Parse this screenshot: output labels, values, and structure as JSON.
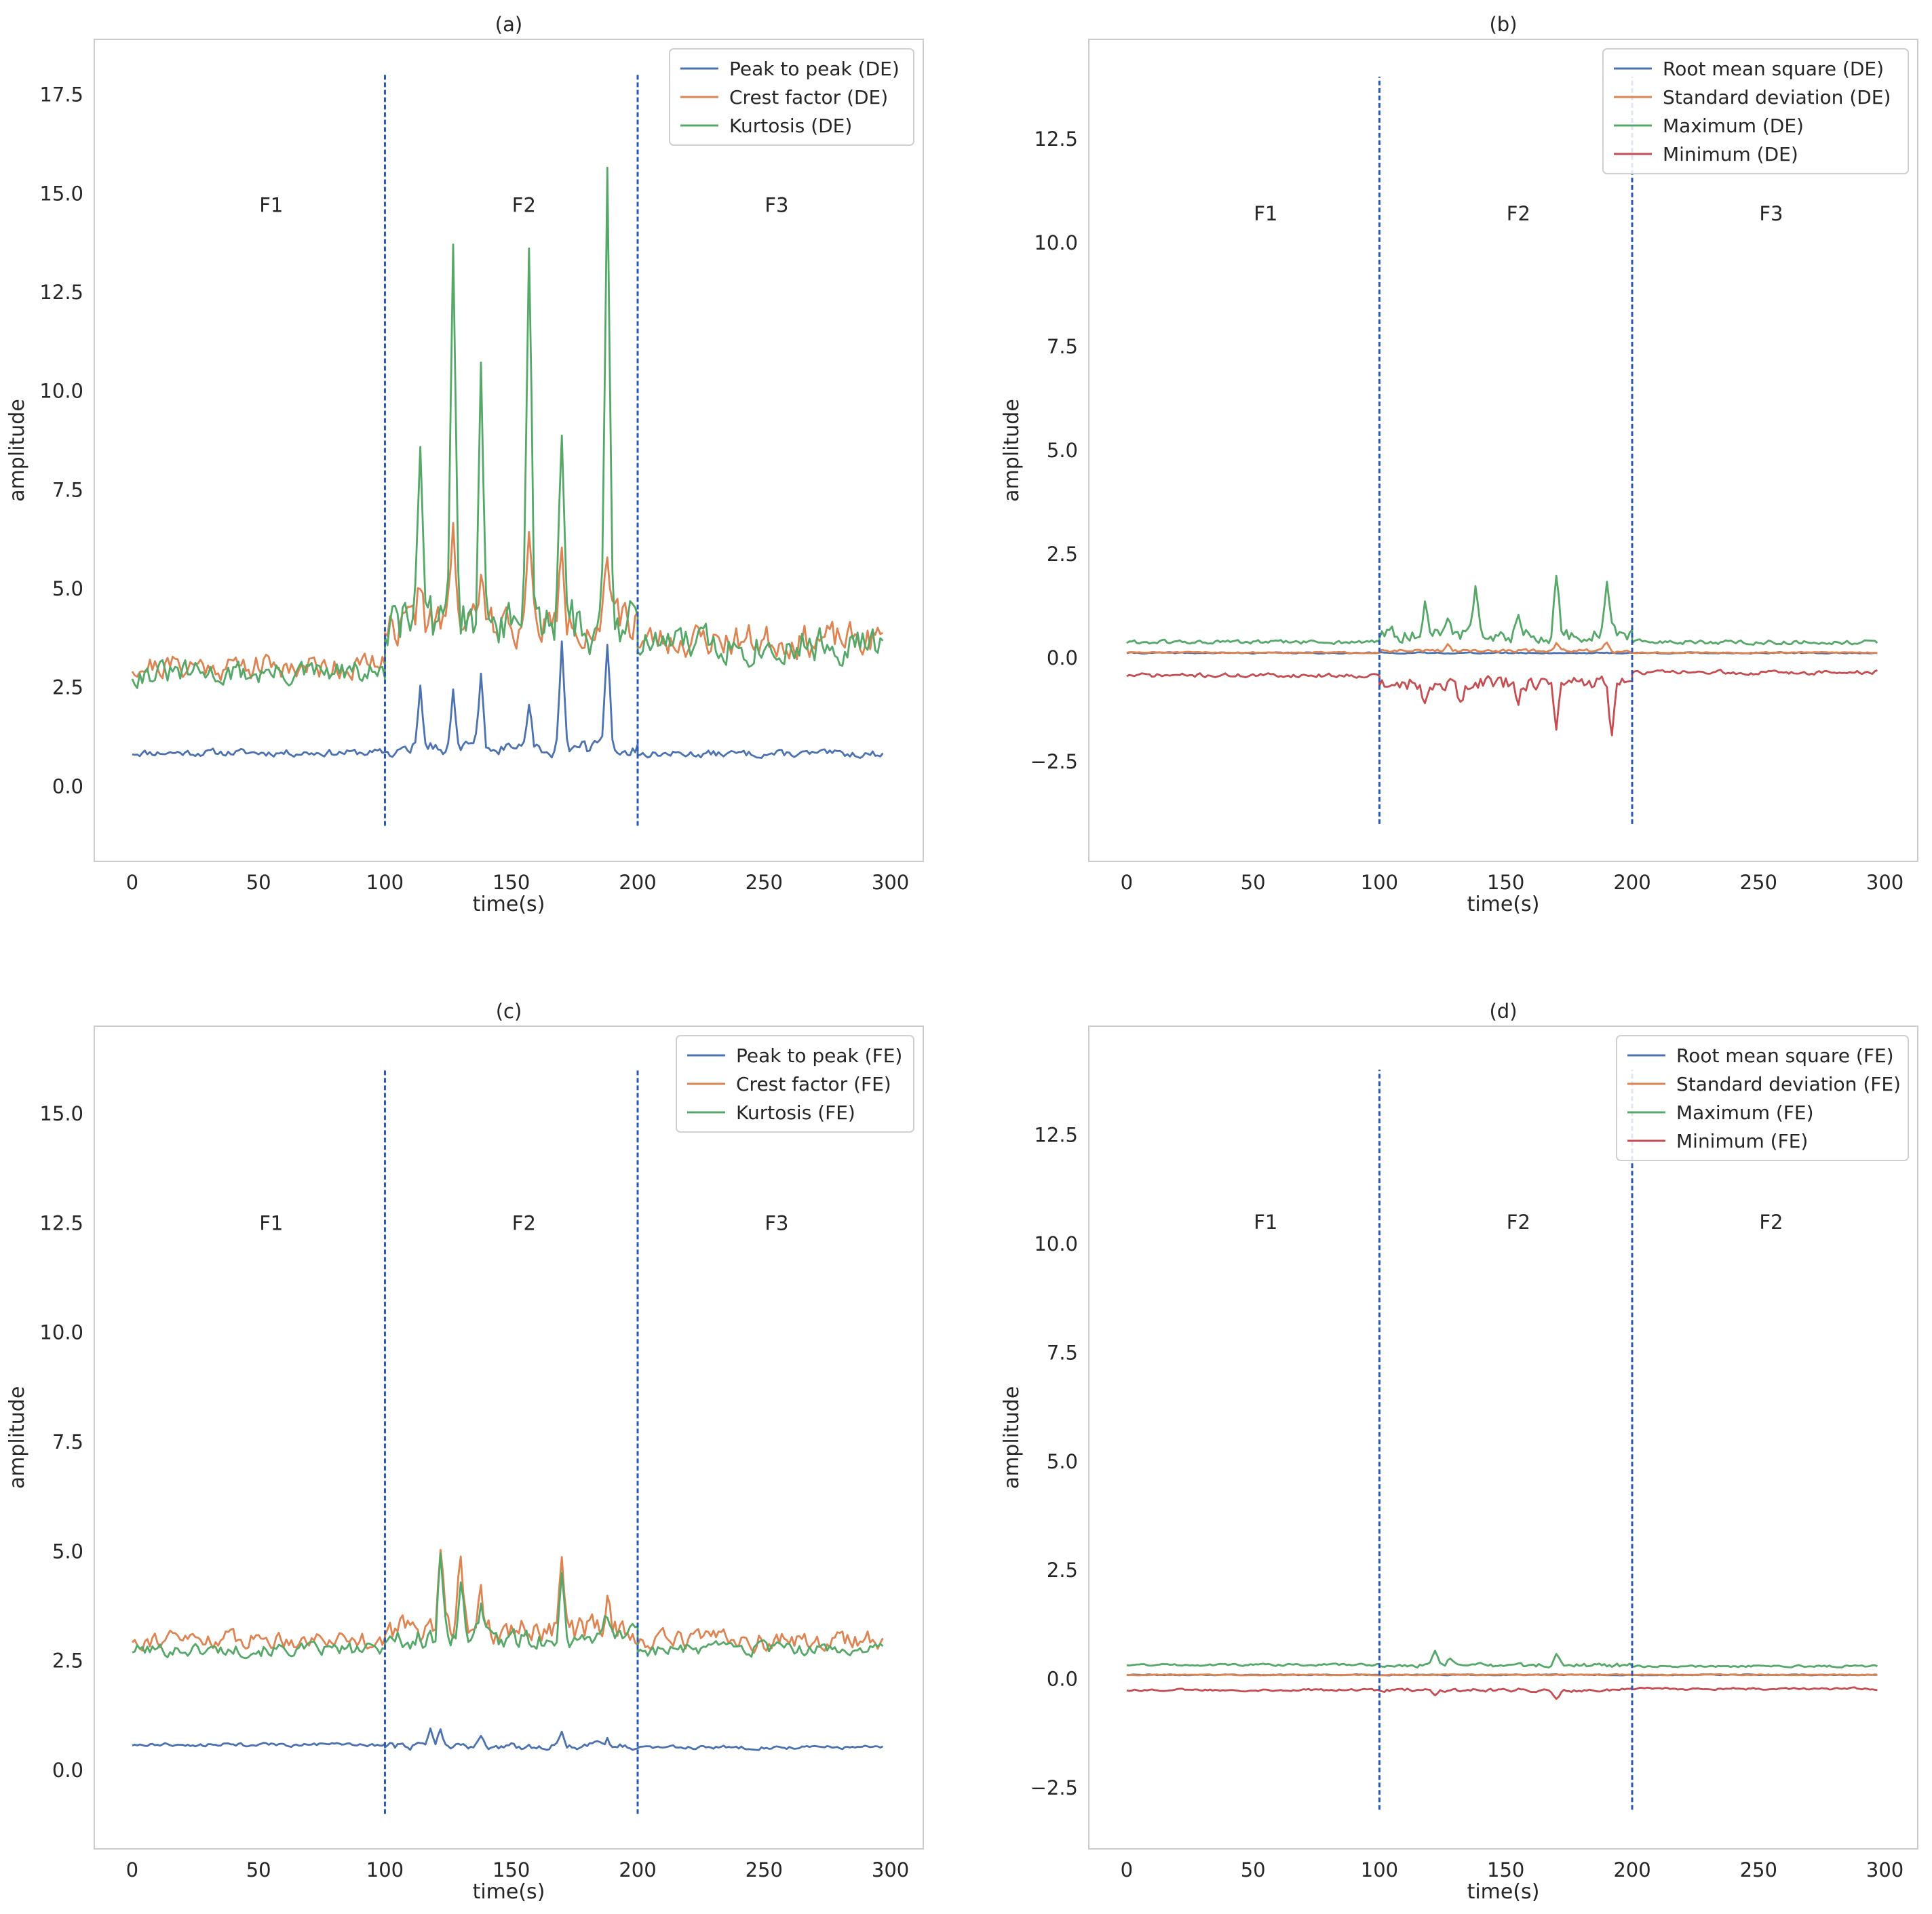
{
  "figure": {
    "colors": {
      "blue": "#4c72b0",
      "orange": "#dd8452",
      "green": "#55a868",
      "red": "#c44e52",
      "divider": "#2a56b5",
      "frame": "#cccccc",
      "legend_border": "#d0d0d0"
    }
  },
  "chart_data": [
    {
      "type": "line",
      "panel": "a",
      "title": "(a)",
      "xlabel": "time(s)",
      "ylabel": "amplitude",
      "xlim": [
        -15,
        313
      ],
      "ylim": [
        -1.9,
        18.9
      ],
      "xticks": [
        0,
        50,
        100,
        150,
        200,
        250,
        300
      ],
      "xtick_labels": [
        "0",
        "50",
        "100",
        "150",
        "200",
        "250",
        "300"
      ],
      "yticks": [
        0,
        2.5,
        5,
        7.5,
        10,
        12.5,
        15,
        17.5
      ],
      "ytick_labels": [
        "0.0",
        "2.5",
        "5.0",
        "7.5",
        "10.0",
        "12.5",
        "15.0",
        "17.5"
      ],
      "grid": false,
      "legend_position": "top-right",
      "dividers": {
        "x": [
          100,
          200
        ],
        "y_range": [
          -1,
          18
        ],
        "style": "dashed"
      },
      "regions": [
        {
          "label": "F1",
          "x": 55,
          "y": 14.7
        },
        {
          "label": "F2",
          "x": 155,
          "y": 14.7
        },
        {
          "label": "F3",
          "x": 255,
          "y": 14.7
        }
      ],
      "series": [
        {
          "name": "Peak to peak (DE)",
          "color": "#4c72b0",
          "segments": [
            {
              "x_start": 0,
              "x_end": 100,
              "base": 0.85,
              "noise": 0.09,
              "seed": 11,
              "spikes": []
            },
            {
              "x_start": 100,
              "x_end": 200,
              "base": 0.95,
              "noise": 0.18,
              "seed": 12,
              "spikes": [
                [
                  114,
                  2.5
                ],
                [
                  127,
                  2.4
                ],
                [
                  138,
                  2.8
                ],
                [
                  157,
                  2.2
                ],
                [
                  170,
                  3.6
                ],
                [
                  188,
                  3.6
                ]
              ]
            },
            {
              "x_start": 200,
              "x_end": 297,
              "base": 0.82,
              "noise": 0.09,
              "seed": 13,
              "spikes": []
            }
          ]
        },
        {
          "name": "Crest factor (DE)",
          "color": "#dd8452",
          "segments": [
            {
              "x_start": 0,
              "x_end": 100,
              "base": 3.05,
              "noise": 0.32,
              "seed": 21,
              "spikes": []
            },
            {
              "x_start": 100,
              "x_end": 200,
              "base": 4.1,
              "noise": 0.5,
              "seed": 22,
              "spikes": [
                [
                  114,
                  5.3
                ],
                [
                  127,
                  6.7
                ],
                [
                  138,
                  5.2
                ],
                [
                  157,
                  6.0
                ],
                [
                  170,
                  5.8
                ],
                [
                  188,
                  5.6
                ]
              ]
            },
            {
              "x_start": 200,
              "x_end": 297,
              "base": 3.7,
              "noise": 0.42,
              "seed": 23,
              "spikes": []
            }
          ]
        },
        {
          "name": "Kurtosis (DE)",
          "color": "#55a868",
          "segments": [
            {
              "x_start": 0,
              "x_end": 100,
              "base": 2.85,
              "noise": 0.3,
              "seed": 31,
              "spikes": []
            },
            {
              "x_start": 100,
              "x_end": 200,
              "base": 4.1,
              "noise": 0.7,
              "seed": 32,
              "spikes": [
                [
                  114,
                  8.8
                ],
                [
                  127,
                  14.3
                ],
                [
                  138,
                  10.6
                ],
                [
                  157,
                  13.6
                ],
                [
                  170,
                  8.9
                ],
                [
                  188,
                  15.7
                ]
              ]
            },
            {
              "x_start": 200,
              "x_end": 297,
              "base": 3.6,
              "noise": 0.45,
              "seed": 33,
              "spikes": []
            }
          ]
        }
      ]
    },
    {
      "type": "line",
      "panel": "b",
      "title": "(b)",
      "xlabel": "time(s)",
      "ylabel": "amplitude",
      "xlim": [
        -15,
        313
      ],
      "ylim": [
        -4.9,
        14.9
      ],
      "xticks": [
        0,
        50,
        100,
        150,
        200,
        250,
        300
      ],
      "xtick_labels": [
        "0",
        "50",
        "100",
        "150",
        "200",
        "250",
        "300"
      ],
      "yticks": [
        -2.5,
        0,
        2.5,
        5,
        7.5,
        10,
        12.5
      ],
      "ytick_labels": [
        "−2.5",
        "0.0",
        "2.5",
        "5.0",
        "7.5",
        "10.0",
        "12.5"
      ],
      "grid": false,
      "legend_position": "top-right",
      "dividers": {
        "x": [
          100,
          200
        ],
        "y_range": [
          -4,
          14
        ],
        "style": "dashed"
      },
      "regions": [
        {
          "label": "F1",
          "x": 55,
          "y": 10.7
        },
        {
          "label": "F2",
          "x": 155,
          "y": 10.7
        },
        {
          "label": "F3",
          "x": 255,
          "y": 10.7
        }
      ],
      "series": [
        {
          "name": "Root mean square (DE)",
          "color": "#4c72b0",
          "segments": [
            {
              "x_start": 0,
              "x_end": 297,
              "base": 0.12,
              "noise": 0.015,
              "seed": 41,
              "spikes": []
            }
          ]
        },
        {
          "name": "Standard deviation (DE)",
          "color": "#dd8452",
          "segments": [
            {
              "x_start": 0,
              "x_end": 100,
              "base": 0.13,
              "noise": 0.015,
              "seed": 51,
              "spikes": []
            },
            {
              "x_start": 100,
              "x_end": 200,
              "base": 0.17,
              "noise": 0.04,
              "seed": 52,
              "spikes": [
                [
                  127,
                  0.35
                ],
                [
                  170,
                  0.35
                ],
                [
                  190,
                  0.38
                ]
              ]
            },
            {
              "x_start": 200,
              "x_end": 297,
              "base": 0.13,
              "noise": 0.015,
              "seed": 53,
              "spikes": []
            }
          ]
        },
        {
          "name": "Maximum (DE)",
          "color": "#55a868",
          "segments": [
            {
              "x_start": 0,
              "x_end": 100,
              "base": 0.38,
              "noise": 0.05,
              "seed": 61,
              "spikes": []
            },
            {
              "x_start": 100,
              "x_end": 200,
              "base": 0.55,
              "noise": 0.18,
              "seed": 62,
              "spikes": [
                [
                  118,
                  1.3
                ],
                [
                  127,
                  1.1
                ],
                [
                  138,
                  1.7
                ],
                [
                  155,
                  1.2
                ],
                [
                  170,
                  1.95
                ],
                [
                  190,
                  1.7
                ]
              ]
            },
            {
              "x_start": 200,
              "x_end": 297,
              "base": 0.38,
              "noise": 0.05,
              "seed": 63,
              "spikes": []
            }
          ]
        },
        {
          "name": "Minimum (DE)",
          "color": "#c44e52",
          "segments": [
            {
              "x_start": 0,
              "x_end": 100,
              "base": -0.42,
              "noise": 0.05,
              "seed": 71,
              "spikes": []
            },
            {
              "x_start": 100,
              "x_end": 200,
              "base": -0.6,
              "noise": 0.18,
              "seed": 72,
              "spikes": [
                [
                  118,
                  -1.2
                ],
                [
                  132,
                  -1.1
                ],
                [
                  155,
                  -1.0
                ],
                [
                  170,
                  -1.7
                ],
                [
                  192,
                  -1.85
                ]
              ]
            },
            {
              "x_start": 200,
              "x_end": 297,
              "base": -0.35,
              "noise": 0.05,
              "seed": 73,
              "spikes": []
            }
          ]
        }
      ]
    },
    {
      "type": "line",
      "panel": "c",
      "title": "(c)",
      "xlabel": "time(s)",
      "ylabel": "amplitude",
      "xlim": [
        -15,
        313
      ],
      "ylim": [
        -1.8,
        17.0
      ],
      "xticks": [
        0,
        50,
        100,
        150,
        200,
        250,
        300
      ],
      "xtick_labels": [
        "0",
        "50",
        "100",
        "150",
        "200",
        "250",
        "300"
      ],
      "yticks": [
        0,
        2.5,
        5,
        7.5,
        10,
        12.5,
        15
      ],
      "ytick_labels": [
        "0.0",
        "2.5",
        "5.0",
        "7.5",
        "10.0",
        "12.5",
        "15.0"
      ],
      "grid": false,
      "legend_position": "top-right",
      "dividers": {
        "x": [
          100,
          200
        ],
        "y_range": [
          -1,
          16
        ],
        "style": "dashed"
      },
      "regions": [
        {
          "label": "F1",
          "x": 55,
          "y": 12.5
        },
        {
          "label": "F2",
          "x": 155,
          "y": 12.5
        },
        {
          "label": "F3",
          "x": 255,
          "y": 12.5
        }
      ],
      "series": [
        {
          "name": "Peak to peak (FE)",
          "color": "#4c72b0",
          "segments": [
            {
              "x_start": 0,
              "x_end": 100,
              "base": 0.58,
              "noise": 0.04,
              "seed": 81,
              "spikes": []
            },
            {
              "x_start": 100,
              "x_end": 200,
              "base": 0.55,
              "noise": 0.08,
              "seed": 82,
              "spikes": [
                [
                  118,
                  0.9
                ],
                [
                  122,
                  0.95
                ],
                [
                  138,
                  0.75
                ],
                [
                  170,
                  0.95
                ],
                [
                  188,
                  0.7
                ]
              ]
            },
            {
              "x_start": 200,
              "x_end": 297,
              "base": 0.52,
              "noise": 0.04,
              "seed": 83,
              "spikes": []
            }
          ]
        },
        {
          "name": "Crest factor (FE)",
          "color": "#dd8452",
          "segments": [
            {
              "x_start": 0,
              "x_end": 100,
              "base": 3.0,
              "noise": 0.2,
              "seed": 91,
              "spikes": []
            },
            {
              "x_start": 100,
              "x_end": 200,
              "base": 3.2,
              "noise": 0.3,
              "seed": 92,
              "spikes": [
                [
                  122,
                  5.35
                ],
                [
                  130,
                  4.8
                ],
                [
                  138,
                  4.1
                ],
                [
                  170,
                  4.6
                ],
                [
                  188,
                  3.8
                ]
              ]
            },
            {
              "x_start": 200,
              "x_end": 297,
              "base": 2.95,
              "noise": 0.22,
              "seed": 93,
              "spikes": []
            }
          ]
        },
        {
          "name": "Kurtosis (FE)",
          "color": "#55a868",
          "segments": [
            {
              "x_start": 0,
              "x_end": 100,
              "base": 2.75,
              "noise": 0.15,
              "seed": 101,
              "spikes": []
            },
            {
              "x_start": 100,
              "x_end": 200,
              "base": 3.0,
              "noise": 0.25,
              "seed": 102,
              "spikes": [
                [
                  122,
                  4.8
                ],
                [
                  130,
                  4.5
                ],
                [
                  138,
                  3.8
                ],
                [
                  170,
                  4.5
                ],
                [
                  188,
                  3.6
                ]
              ]
            },
            {
              "x_start": 200,
              "x_end": 297,
              "base": 2.75,
              "noise": 0.15,
              "seed": 103,
              "spikes": []
            }
          ]
        }
      ]
    },
    {
      "type": "line",
      "panel": "d",
      "title": "(d)",
      "xlabel": "time(s)",
      "ylabel": "amplitude",
      "xlim": [
        -15,
        313
      ],
      "ylim": [
        -3.9,
        15.0
      ],
      "xticks": [
        0,
        50,
        100,
        150,
        200,
        250,
        300
      ],
      "xtick_labels": [
        "0",
        "50",
        "100",
        "150",
        "200",
        "250",
        "300"
      ],
      "yticks": [
        -2.5,
        0,
        2.5,
        5,
        7.5,
        10,
        12.5
      ],
      "ytick_labels": [
        "−2.5",
        "0.0",
        "2.5",
        "5.0",
        "7.5",
        "10.0",
        "12.5"
      ],
      "grid": false,
      "legend_position": "top-right",
      "dividers": {
        "x": [
          100,
          200
        ],
        "y_range": [
          -3,
          14
        ],
        "style": "dashed"
      },
      "regions": [
        {
          "label": "F1",
          "x": 55,
          "y": 10.5
        },
        {
          "label": "F2",
          "x": 155,
          "y": 10.5
        },
        {
          "label": "F2",
          "x": 255,
          "y": 10.5
        }
      ],
      "series": [
        {
          "name": "Root mean square (FE)",
          "color": "#4c72b0",
          "segments": [
            {
              "x_start": 0,
              "x_end": 297,
              "base": 0.1,
              "noise": 0.01,
              "seed": 111,
              "spikes": []
            }
          ]
        },
        {
          "name": "Standard deviation (FE)",
          "color": "#dd8452",
          "segments": [
            {
              "x_start": 0,
              "x_end": 297,
              "base": 0.1,
              "noise": 0.01,
              "seed": 121,
              "spikes": []
            }
          ]
        },
        {
          "name": "Maximum (FE)",
          "color": "#55a868",
          "segments": [
            {
              "x_start": 0,
              "x_end": 100,
              "base": 0.33,
              "noise": 0.025,
              "seed": 131,
              "spikes": []
            },
            {
              "x_start": 100,
              "x_end": 200,
              "base": 0.32,
              "noise": 0.05,
              "seed": 132,
              "spikes": [
                [
                  122,
                  0.6
                ],
                [
                  128,
                  0.48
                ],
                [
                  170,
                  0.55
                ]
              ]
            },
            {
              "x_start": 200,
              "x_end": 297,
              "base": 0.3,
              "noise": 0.025,
              "seed": 133,
              "spikes": []
            }
          ]
        },
        {
          "name": "Minimum (FE)",
          "color": "#c44e52",
          "segments": [
            {
              "x_start": 0,
              "x_end": 100,
              "base": -0.25,
              "noise": 0.025,
              "seed": 141,
              "spikes": []
            },
            {
              "x_start": 100,
              "x_end": 200,
              "base": -0.25,
              "noise": 0.04,
              "seed": 142,
              "spikes": [
                [
                  122,
                  -0.38
                ],
                [
                  170,
                  -0.45
                ]
              ]
            },
            {
              "x_start": 200,
              "x_end": 297,
              "base": -0.22,
              "noise": 0.025,
              "seed": 143,
              "spikes": []
            }
          ]
        }
      ]
    }
  ]
}
